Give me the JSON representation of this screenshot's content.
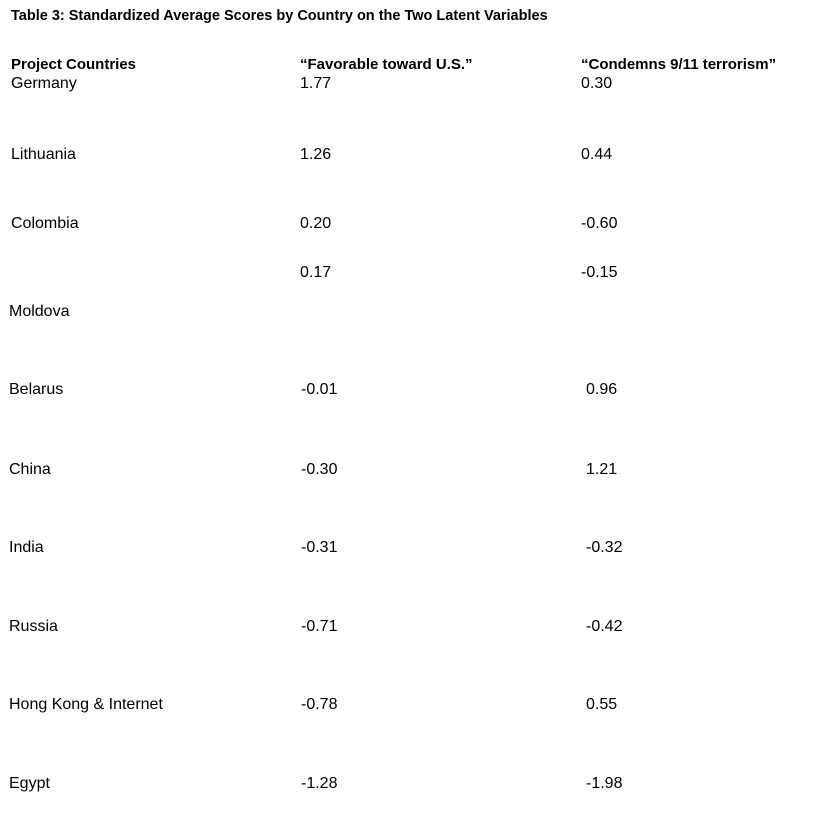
{
  "title": "Table 3: Standardized Average Scores by Country on the Two Latent Variables",
  "columns": [
    "Project Countries",
    "“Favorable toward U.S.”",
    "“Condemns 9/11 terrorism”"
  ],
  "rows": [
    {
      "country": "Germany",
      "favorable": "1.77",
      "condemns": "0.30"
    },
    {
      "country": "Lithuania",
      "favorable": "1.26",
      "condemns": "0.44"
    },
    {
      "country": "Colombia",
      "favorable": "0.20",
      "condemns": "-0.60"
    },
    {
      "country": "Moldova",
      "favorable": "0.17",
      "condemns": "-0.15"
    },
    {
      "country": "Belarus",
      "favorable": "-0.01",
      "condemns": "0.96"
    },
    {
      "country": "China",
      "favorable": "-0.30",
      "condemns": "1.21"
    },
    {
      "country": "India",
      "favorable": "-0.31",
      "condemns": "-0.32"
    },
    {
      "country": "Russia",
      "favorable": "-0.71",
      "condemns": "-0.42"
    },
    {
      "country": "Hong Kong & Internet",
      "favorable": "-0.78",
      "condemns": "0.55"
    },
    {
      "country": "Egypt",
      "favorable": "-1.28",
      "condemns": "-1.98"
    }
  ]
}
